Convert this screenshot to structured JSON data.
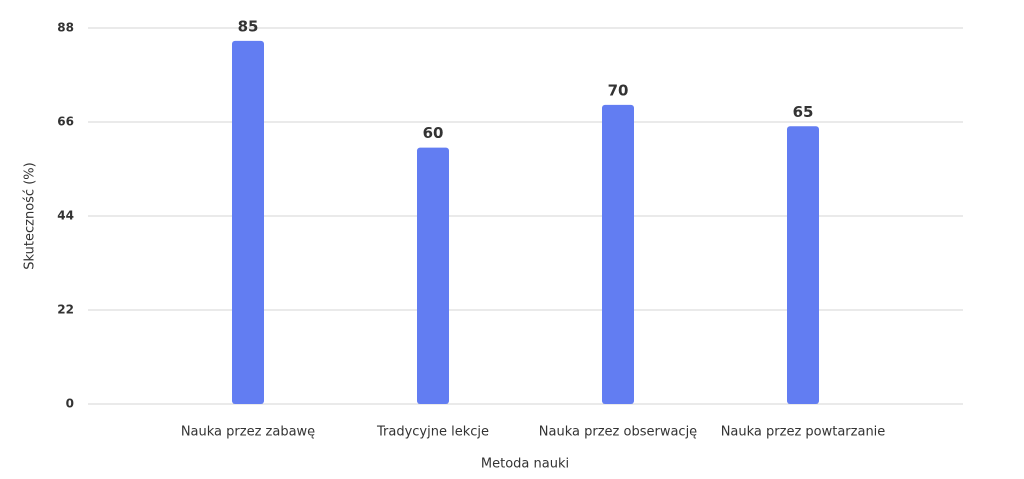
{
  "chart_data": {
    "type": "bar",
    "x_label": "Metoda nauki",
    "y_label": "Skuteczność (%)",
    "categories": [
      "Nauka przez zabawę",
      "Tradycyjne lekcje",
      "Nauka przez obserwację",
      "Nauka przez powtarzanie"
    ],
    "values": [
      85,
      60,
      70,
      65
    ],
    "color": "#627df2",
    "ylim": [
      0,
      88
    ],
    "yticks": [
      0,
      22,
      44,
      66,
      88
    ],
    "grid": true
  }
}
